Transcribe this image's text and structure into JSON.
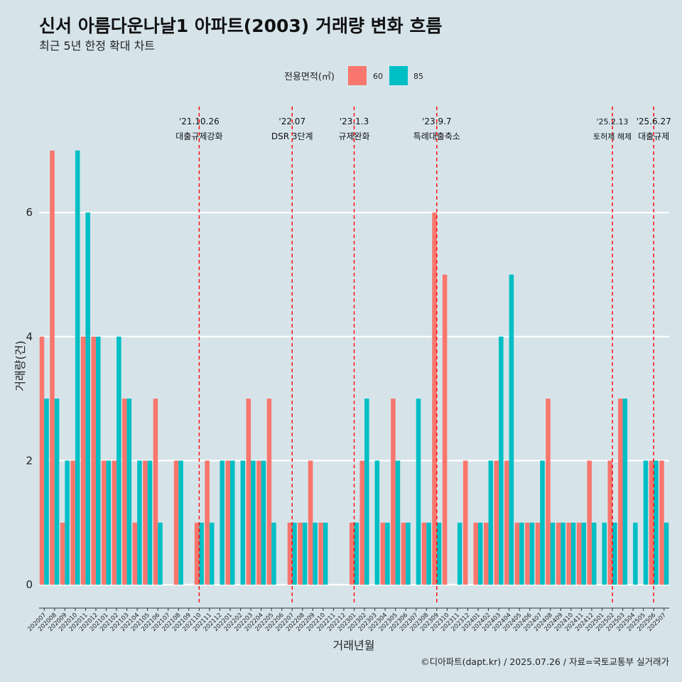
{
  "chart_data": {
    "type": "bar",
    "title": "신서 아름다운나날1 아파트(2003) 거래량 변화 흐름",
    "subtitle": "최근 5년 한정 확대 차트",
    "xlabel": "거래년월",
    "ylabel": "거래량(건)",
    "caption": "©디아파트(dapt.kr) / 2025.07.26 / 자료=국토교통부 실거래가",
    "ylim": [
      -0.35,
      7.5
    ],
    "yticks": [
      0,
      2,
      4,
      6
    ],
    "legend": {
      "title": "전용면적(㎡)",
      "position": "top",
      "items": [
        {
          "label": "60",
          "color": "#f8766d"
        },
        {
          "label": "85",
          "color": "#00bfc4"
        }
      ]
    },
    "categories": [
      "202007",
      "202008",
      "202009",
      "202010",
      "202011",
      "202012",
      "202101",
      "202102",
      "202103",
      "202104",
      "202105",
      "202106",
      "202107",
      "202108",
      "202109",
      "202110",
      "202111",
      "202112",
      "202201",
      "202202",
      "202203",
      "202204",
      "202205",
      "202206",
      "202207",
      "202208",
      "202209",
      "202210",
      "202211",
      "202212",
      "202301",
      "202302",
      "202303",
      "202304",
      "202305",
      "202306",
      "202307",
      "202308",
      "202309",
      "202310",
      "202311",
      "202312",
      "202401",
      "202402",
      "202403",
      "202404",
      "202405",
      "202406",
      "202407",
      "202408",
      "202409",
      "202410",
      "202411",
      "202412",
      "202501",
      "202502",
      "202503",
      "202504",
      "202505",
      "202506",
      "202507"
    ],
    "series": [
      {
        "name": "60",
        "color": "#f8766d",
        "values": [
          4,
          7,
          1,
          2,
          4,
          4,
          2,
          2,
          3,
          1,
          2,
          3,
          0,
          2,
          0,
          1,
          2,
          0,
          2,
          0,
          3,
          2,
          3,
          0,
          1,
          1,
          2,
          1,
          0,
          0,
          1,
          2,
          0,
          1,
          3,
          1,
          0,
          1,
          6,
          5,
          0,
          2,
          1,
          1,
          2,
          2,
          1,
          1,
          1,
          3,
          1,
          1,
          1,
          2,
          0,
          2,
          3,
          0,
          0,
          2,
          2
        ]
      },
      {
        "name": "85",
        "color": "#00bfc4",
        "values": [
          3,
          3,
          2,
          7,
          6,
          4,
          2,
          4,
          3,
          2,
          2,
          1,
          0,
          2,
          0,
          1,
          1,
          2,
          2,
          2,
          2,
          2,
          1,
          0,
          1,
          1,
          1,
          1,
          0,
          0,
          1,
          3,
          2,
          1,
          2,
          1,
          3,
          1,
          1,
          0,
          1,
          0,
          1,
          2,
          4,
          5,
          1,
          1,
          2,
          1,
          1,
          1,
          1,
          1,
          1,
          1,
          3,
          1,
          2,
          2,
          1
        ]
      }
    ],
    "annotations": [
      {
        "category": "202110",
        "line1": "'21.10.26",
        "line2": "대출규제강화"
      },
      {
        "category": "202207",
        "line1": "'22.07",
        "line2": "DSR 3단계"
      },
      {
        "category": "202301",
        "line1": "'23.1.3",
        "line2": "규제완화"
      },
      {
        "category": "202309",
        "line1": "'23.9.7",
        "line2": "특례대출축소"
      },
      {
        "category": "202502",
        "line1": "'25.2.13",
        "line2": "토허제 해제"
      },
      {
        "category": "202506",
        "line1": "'25.6.27",
        "line2": "대출규제"
      }
    ]
  }
}
